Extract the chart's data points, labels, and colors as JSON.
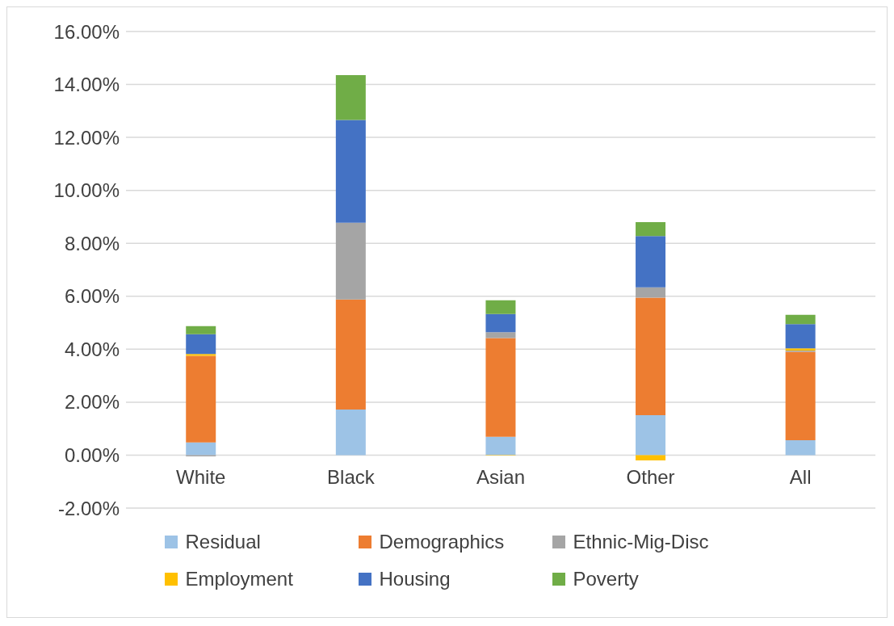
{
  "chart_data": {
    "type": "bar",
    "stacked": true,
    "categories": [
      "White",
      "Black",
      "Asian",
      "Other",
      "All"
    ],
    "series": [
      {
        "name": "Residual",
        "color": "#9dc3e6",
        "values": [
          0.48,
          1.72,
          0.69,
          1.51,
          0.56
        ]
      },
      {
        "name": "Demographics",
        "color": "#ed7d31",
        "values": [
          3.27,
          4.16,
          3.73,
          4.44,
          3.34
        ]
      },
      {
        "name": "Ethnic-Mig-Disc",
        "color": "#a5a5a5",
        "values": [
          -0.05,
          2.9,
          0.22,
          0.39,
          0.05
        ]
      },
      {
        "name": "Employment",
        "color": "#ffc000",
        "values": [
          0.07,
          0,
          -0.02,
          -0.2,
          0.08
        ]
      },
      {
        "name": "Housing",
        "color": "#4472c4",
        "values": [
          0.75,
          3.88,
          0.69,
          1.93,
          0.92
        ]
      },
      {
        "name": "Poverty",
        "color": "#70ad47",
        "values": [
          0.3,
          1.69,
          0.52,
          0.53,
          0.35
        ]
      }
    ],
    "ylim": [
      -2,
      16
    ],
    "yticks": [
      {
        "value": -2,
        "label": "-2.00%"
      },
      {
        "value": 0,
        "label": "0.00%"
      },
      {
        "value": 2,
        "label": "2.00%"
      },
      {
        "value": 4,
        "label": "4.00%"
      },
      {
        "value": 6,
        "label": "6.00%"
      },
      {
        "value": 8,
        "label": "8.00%"
      },
      {
        "value": 10,
        "label": "10.00%"
      },
      {
        "value": 12,
        "label": "12.00%"
      },
      {
        "value": 14,
        "label": "14.00%"
      },
      {
        "value": 16,
        "label": "16.00%"
      }
    ],
    "grid": "y",
    "legend": "bottom"
  }
}
